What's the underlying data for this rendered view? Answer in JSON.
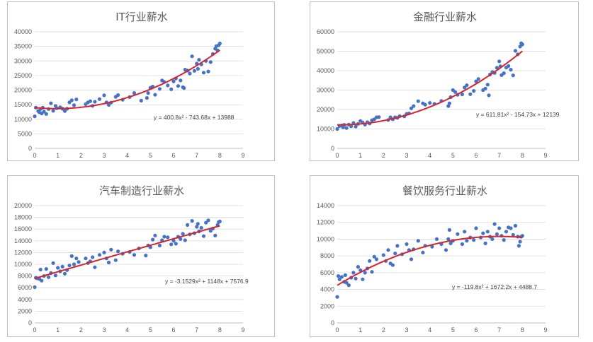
{
  "chart_data": [
    {
      "type": "scatter",
      "title": "IT行业薪水",
      "xlim": [
        0,
        9
      ],
      "ylim": [
        0,
        40000
      ],
      "xticks": [
        "0",
        "1",
        "2",
        "3",
        "4",
        "5",
        "6",
        "7",
        "8",
        "9"
      ],
      "yticks": [
        "0",
        "5000",
        "10000",
        "15000",
        "20000",
        "25000",
        "30000",
        "35000",
        "40000"
      ],
      "xtick_values": [
        0,
        1,
        2,
        3,
        4,
        5,
        6,
        7,
        8,
        9
      ],
      "ytick_values": [
        0,
        5000,
        10000,
        15000,
        20000,
        25000,
        30000,
        35000,
        40000
      ],
      "trendline": {
        "equation": "y = 400.8x² - 743.68x + 13988",
        "a": 400.8,
        "b": -743.68,
        "c": 13988
      },
      "points": [
        [
          0,
          11000
        ],
        [
          0.05,
          14000
        ],
        [
          0.15,
          12800
        ],
        [
          0.2,
          12400
        ],
        [
          0.25,
          13500
        ],
        [
          0.3,
          12000
        ],
        [
          0.35,
          14000
        ],
        [
          0.4,
          12600
        ],
        [
          0.5,
          11800
        ],
        [
          0.6,
          13500
        ],
        [
          0.7,
          15500
        ],
        [
          0.8,
          12900
        ],
        [
          0.9,
          14600
        ],
        [
          0.95,
          13800
        ],
        [
          1.1,
          14100
        ],
        [
          1.2,
          13600
        ],
        [
          1.3,
          12800
        ],
        [
          1.4,
          13600
        ],
        [
          1.5,
          15800
        ],
        [
          1.6,
          16500
        ],
        [
          1.7,
          14800
        ],
        [
          1.8,
          16800
        ],
        [
          2.2,
          15200
        ],
        [
          2.3,
          15800
        ],
        [
          2.4,
          16200
        ],
        [
          2.5,
          14600
        ],
        [
          2.6,
          16000
        ],
        [
          2.8,
          16900
        ],
        [
          3.0,
          18200
        ],
        [
          3.1,
          15800
        ],
        [
          3.2,
          14900
        ],
        [
          3.3,
          15700
        ],
        [
          3.5,
          17700
        ],
        [
          3.6,
          18300
        ],
        [
          3.8,
          16700
        ],
        [
          4.1,
          17600
        ],
        [
          4.3,
          19000
        ],
        [
          4.6,
          16400
        ],
        [
          4.85,
          17300
        ],
        [
          4.9,
          19000
        ],
        [
          5.0,
          20800
        ],
        [
          5.1,
          21200
        ],
        [
          5.2,
          18400
        ],
        [
          5.4,
          20400
        ],
        [
          5.5,
          23300
        ],
        [
          5.6,
          22800
        ],
        [
          5.75,
          21600
        ],
        [
          5.9,
          20300
        ],
        [
          6.0,
          23000
        ],
        [
          6.1,
          24000
        ],
        [
          6.2,
          21400
        ],
        [
          6.3,
          23300
        ],
        [
          6.4,
          21000
        ],
        [
          6.45,
          20700
        ],
        [
          6.5,
          27000
        ],
        [
          6.6,
          26700
        ],
        [
          6.7,
          25700
        ],
        [
          6.8,
          31600
        ],
        [
          6.9,
          26600
        ],
        [
          7.0,
          29100
        ],
        [
          7.05,
          27300
        ],
        [
          7.1,
          30400
        ],
        [
          7.2,
          28800
        ],
        [
          7.3,
          26000
        ],
        [
          7.4,
          30000
        ],
        [
          7.5,
          26400
        ],
        [
          7.6,
          29600
        ],
        [
          7.7,
          32400
        ],
        [
          7.8,
          34200
        ],
        [
          7.85,
          35100
        ],
        [
          7.9,
          33600
        ],
        [
          7.95,
          35400
        ],
        [
          8.0,
          36000
        ]
      ]
    },
    {
      "type": "scatter",
      "title": "金融行业薪水",
      "xlim": [
        0,
        9
      ],
      "ylim": [
        0,
        60000
      ],
      "xticks": [
        "0",
        "1",
        "2",
        "3",
        "4",
        "5",
        "6",
        "7",
        "8",
        "9"
      ],
      "yticks": [
        "0",
        "10000",
        "20000",
        "30000",
        "40000",
        "50000",
        "60000"
      ],
      "xtick_values": [
        0,
        1,
        2,
        3,
        4,
        5,
        6,
        7,
        8,
        9
      ],
      "ytick_values": [
        0,
        10000,
        20000,
        30000,
        40000,
        50000,
        60000
      ],
      "trendline": {
        "equation": "y = 611.81x² - 154.73x + 12139",
        "a": 611.81,
        "b": -154.73,
        "c": 12139
      },
      "points": [
        [
          0,
          10000
        ],
        [
          0.1,
          11500
        ],
        [
          0.2,
          11800
        ],
        [
          0.25,
          10800
        ],
        [
          0.3,
          12100
        ],
        [
          0.4,
          10500
        ],
        [
          0.5,
          12300
        ],
        [
          0.6,
          11400
        ],
        [
          0.7,
          13100
        ],
        [
          0.8,
          11200
        ],
        [
          0.9,
          12600
        ],
        [
          1.0,
          14100
        ],
        [
          1.1,
          13400
        ],
        [
          1.2,
          12200
        ],
        [
          1.3,
          13500
        ],
        [
          1.4,
          12800
        ],
        [
          1.5,
          14500
        ],
        [
          1.6,
          15000
        ],
        [
          1.7,
          16000
        ],
        [
          1.8,
          16100
        ],
        [
          2.2,
          14600
        ],
        [
          2.3,
          16000
        ],
        [
          2.4,
          15000
        ],
        [
          2.5,
          16000
        ],
        [
          2.6,
          15700
        ],
        [
          2.7,
          16600
        ],
        [
          2.9,
          16500
        ],
        [
          3.0,
          17800
        ],
        [
          3.1,
          18000
        ],
        [
          3.2,
          20600
        ],
        [
          3.3,
          21800
        ],
        [
          3.5,
          24300
        ],
        [
          3.7,
          23200
        ],
        [
          3.8,
          22500
        ],
        [
          4.0,
          23400
        ],
        [
          4.2,
          22900
        ],
        [
          4.5,
          24400
        ],
        [
          4.8,
          21800
        ],
        [
          4.85,
          23200
        ],
        [
          4.9,
          26400
        ],
        [
          5.0,
          30000
        ],
        [
          5.1,
          29000
        ],
        [
          5.2,
          27600
        ],
        [
          5.4,
          27800
        ],
        [
          5.5,
          31300
        ],
        [
          5.6,
          32500
        ],
        [
          5.75,
          27900
        ],
        [
          5.9,
          29600
        ],
        [
          6.0,
          34500
        ],
        [
          6.1,
          35700
        ],
        [
          6.3,
          30000
        ],
        [
          6.4,
          30800
        ],
        [
          6.5,
          32800
        ],
        [
          6.55,
          27300
        ],
        [
          6.6,
          38000
        ],
        [
          6.7,
          39300
        ],
        [
          6.8,
          38800
        ],
        [
          6.9,
          41500
        ],
        [
          7.0,
          44800
        ],
        [
          7.05,
          42200
        ],
        [
          7.1,
          37700
        ],
        [
          7.2,
          38700
        ],
        [
          7.3,
          41600
        ],
        [
          7.4,
          42400
        ],
        [
          7.5,
          40500
        ],
        [
          7.6,
          37600
        ],
        [
          7.7,
          50200
        ],
        [
          7.8,
          48400
        ],
        [
          7.9,
          52400
        ],
        [
          7.95,
          54100
        ],
        [
          8.0,
          53500
        ]
      ]
    },
    {
      "type": "scatter",
      "title": "汽车制造行业薪水",
      "xlim": [
        0,
        9
      ],
      "ylim": [
        0,
        20000
      ],
      "xticks": [
        "0",
        "1",
        "2",
        "3",
        "4",
        "5",
        "6",
        "7",
        "8",
        "9"
      ],
      "yticks": [
        "0",
        "2000",
        "4000",
        "6000",
        "8000",
        "10000",
        "12000",
        "14000",
        "16000",
        "18000",
        "20000"
      ],
      "xtick_values": [
        0,
        1,
        2,
        3,
        4,
        5,
        6,
        7,
        8,
        9
      ],
      "ytick_values": [
        0,
        2000,
        4000,
        6000,
        8000,
        10000,
        12000,
        14000,
        16000,
        18000,
        20000
      ],
      "trendline": {
        "equation": "y = -3.1529x² + 1148x + 7576.9",
        "a": -3.1529,
        "b": 1148,
        "c": 7576.9
      },
      "points": [
        [
          0,
          6100
        ],
        [
          0.05,
          7700
        ],
        [
          0.1,
          7600
        ],
        [
          0.2,
          7500
        ],
        [
          0.25,
          9100
        ],
        [
          0.3,
          7200
        ],
        [
          0.4,
          8000
        ],
        [
          0.5,
          9200
        ],
        [
          0.6,
          7800
        ],
        [
          0.7,
          8500
        ],
        [
          0.8,
          10200
        ],
        [
          0.9,
          8100
        ],
        [
          1.0,
          9400
        ],
        [
          1.1,
          8800
        ],
        [
          1.2,
          9600
        ],
        [
          1.3,
          8400
        ],
        [
          1.4,
          9000
        ],
        [
          1.5,
          9800
        ],
        [
          1.6,
          11400
        ],
        [
          1.7,
          10000
        ],
        [
          1.8,
          11000
        ],
        [
          1.9,
          10400
        ],
        [
          2.2,
          11000
        ],
        [
          2.3,
          10200
        ],
        [
          2.4,
          10500
        ],
        [
          2.5,
          11200
        ],
        [
          2.6,
          9500
        ],
        [
          2.8,
          11600
        ],
        [
          3.0,
          12000
        ],
        [
          3.1,
          11000
        ],
        [
          3.2,
          10300
        ],
        [
          3.3,
          12500
        ],
        [
          3.5,
          10700
        ],
        [
          3.6,
          12200
        ],
        [
          3.8,
          11800
        ],
        [
          4.1,
          12100
        ],
        [
          4.3,
          11600
        ],
        [
          4.5,
          12700
        ],
        [
          4.8,
          11500
        ],
        [
          4.9,
          13200
        ],
        [
          5.0,
          12900
        ],
        [
          5.1,
          14200
        ],
        [
          5.2,
          14900
        ],
        [
          5.4,
          13200
        ],
        [
          5.5,
          14100
        ],
        [
          5.6,
          14700
        ],
        [
          5.75,
          14600
        ],
        [
          5.9,
          13400
        ],
        [
          6.0,
          14000
        ],
        [
          6.1,
          13500
        ],
        [
          6.2,
          14700
        ],
        [
          6.3,
          14300
        ],
        [
          6.4,
          15200
        ],
        [
          6.5,
          14100
        ],
        [
          6.6,
          16700
        ],
        [
          6.7,
          15100
        ],
        [
          6.8,
          17400
        ],
        [
          6.9,
          15300
        ],
        [
          7.0,
          16400
        ],
        [
          7.05,
          16900
        ],
        [
          7.1,
          15600
        ],
        [
          7.2,
          16200
        ],
        [
          7.3,
          14800
        ],
        [
          7.4,
          17100
        ],
        [
          7.5,
          17500
        ],
        [
          7.6,
          15700
        ],
        [
          7.7,
          16100
        ],
        [
          7.8,
          14900
        ],
        [
          7.9,
          16700
        ],
        [
          7.95,
          17200
        ],
        [
          8.0,
          17300
        ]
      ]
    },
    {
      "type": "scatter",
      "title": "餐饮服务行业薪水",
      "xlim": [
        0,
        9
      ],
      "ylim": [
        0,
        14000
      ],
      "xticks": [
        "0",
        "1",
        "2",
        "3",
        "4",
        "5",
        "6",
        "7",
        "8",
        "9"
      ],
      "yticks": [
        "0",
        "2000",
        "4000",
        "6000",
        "8000",
        "10000",
        "12000",
        "14000"
      ],
      "xtick_values": [
        0,
        1,
        2,
        3,
        4,
        5,
        6,
        7,
        8,
        9
      ],
      "ytick_values": [
        0,
        2000,
        4000,
        6000,
        8000,
        10000,
        12000,
        14000
      ],
      "trendline": {
        "equation": "y = -119.8x² + 1672.2x + 4488.7",
        "a": -119.8,
        "b": 1672.2,
        "c": 4488.7
      },
      "points": [
        [
          0,
          3100
        ],
        [
          0.05,
          5600
        ],
        [
          0.1,
          5200
        ],
        [
          0.2,
          5500
        ],
        [
          0.3,
          4900
        ],
        [
          0.35,
          5700
        ],
        [
          0.4,
          4800
        ],
        [
          0.5,
          4500
        ],
        [
          0.6,
          5400
        ],
        [
          0.7,
          6000
        ],
        [
          0.8,
          5300
        ],
        [
          0.9,
          6700
        ],
        [
          1.0,
          6300
        ],
        [
          1.1,
          5200
        ],
        [
          1.2,
          6000
        ],
        [
          1.3,
          6500
        ],
        [
          1.4,
          7400
        ],
        [
          1.5,
          6100
        ],
        [
          1.6,
          7900
        ],
        [
          1.7,
          7600
        ],
        [
          2.0,
          8100
        ],
        [
          2.1,
          7400
        ],
        [
          2.2,
          8700
        ],
        [
          2.3,
          7100
        ],
        [
          2.4,
          6900
        ],
        [
          2.5,
          8300
        ],
        [
          2.6,
          9200
        ],
        [
          2.8,
          8200
        ],
        [
          3.0,
          9400
        ],
        [
          3.1,
          8700
        ],
        [
          3.2,
          7600
        ],
        [
          3.3,
          8800
        ],
        [
          3.5,
          9800
        ],
        [
          3.7,
          8400
        ],
        [
          3.8,
          9200
        ],
        [
          4.1,
          9100
        ],
        [
          4.3,
          10000
        ],
        [
          4.5,
          9400
        ],
        [
          4.7,
          8700
        ],
        [
          4.8,
          10000
        ],
        [
          4.85,
          11100
        ],
        [
          4.9,
          9500
        ],
        [
          5.0,
          9800
        ],
        [
          5.2,
          10600
        ],
        [
          5.4,
          9400
        ],
        [
          5.5,
          10900
        ],
        [
          5.6,
          9800
        ],
        [
          5.75,
          10200
        ],
        [
          5.9,
          9900
        ],
        [
          6.0,
          11300
        ],
        [
          6.2,
          10200
        ],
        [
          6.3,
          10700
        ],
        [
          6.4,
          9500
        ],
        [
          6.5,
          10900
        ],
        [
          6.6,
          10300
        ],
        [
          6.7,
          10000
        ],
        [
          6.8,
          11800
        ],
        [
          6.9,
          10600
        ],
        [
          7.0,
          11300
        ],
        [
          7.1,
          10400
        ],
        [
          7.2,
          9900
        ],
        [
          7.3,
          10900
        ],
        [
          7.4,
          11400
        ],
        [
          7.5,
          11300
        ],
        [
          7.6,
          10500
        ],
        [
          7.7,
          11600
        ],
        [
          7.8,
          10300
        ],
        [
          7.85,
          9200
        ],
        [
          7.9,
          9700
        ],
        [
          7.95,
          10300
        ],
        [
          8.0,
          10400
        ]
      ]
    }
  ],
  "colors": {
    "marker": "#4472c4",
    "trendline": "#d9232d",
    "grid": "#d9d9d9",
    "axis": "#bfbfbf",
    "text": "#595959"
  }
}
